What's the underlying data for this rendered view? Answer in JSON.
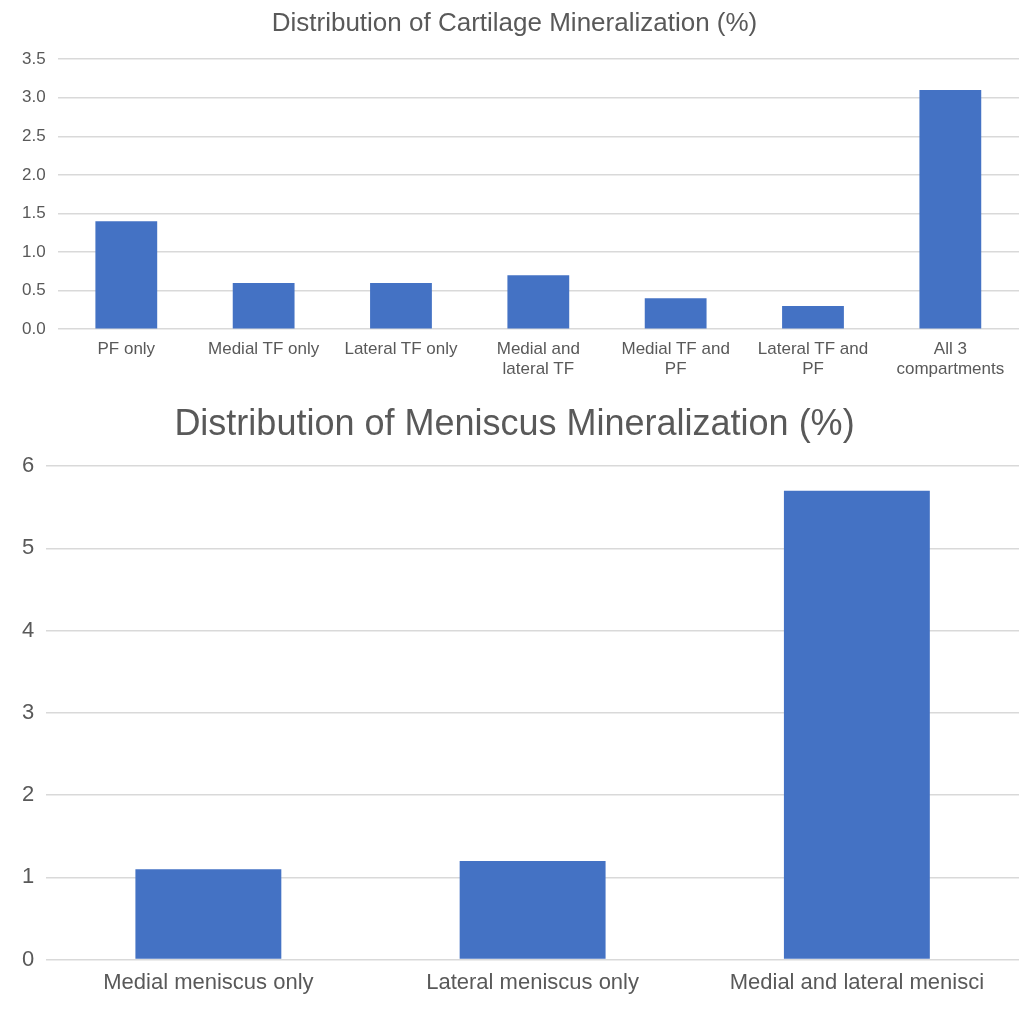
{
  "chart_data": [
    {
      "type": "bar",
      "title": "Distribution of Cartilage Mineralization (%)",
      "categories": [
        "PF only",
        "Medial TF only",
        "Lateral TF only",
        "Medial and lateral TF",
        "Medial TF and PF",
        "Lateral TF and PF",
        "All 3 compartments"
      ],
      "values": [
        1.4,
        0.6,
        0.6,
        0.7,
        0.4,
        0.3,
        3.1
      ],
      "color": "#4472c4",
      "ylim": [
        0,
        3.5
      ],
      "yticks": [
        {
          "value": 0,
          "label": "0.0"
        },
        {
          "value": 0.5,
          "label": "0.5"
        },
        {
          "value": 1,
          "label": "1.0"
        },
        {
          "value": 1.5,
          "label": "1.5"
        },
        {
          "value": 2,
          "label": "2.0"
        },
        {
          "value": 2.5,
          "label": "2.5"
        },
        {
          "value": 3,
          "label": "3.0"
        },
        {
          "value": 3.5,
          "label": "3.5"
        }
      ],
      "grid": "y",
      "legend": false
    },
    {
      "type": "bar",
      "title": "Distribution of Meniscus Mineralization (%)",
      "categories": [
        "Medial meniscus only",
        "Lateral meniscus only",
        "Medial and lateral menisci"
      ],
      "values": [
        1.1,
        1.2,
        5.7
      ],
      "color": "#4472c4",
      "ylim": [
        0,
        6
      ],
      "yticks": [
        0,
        1,
        2,
        3,
        4,
        5,
        6
      ],
      "grid": "y",
      "legend": false
    }
  ]
}
